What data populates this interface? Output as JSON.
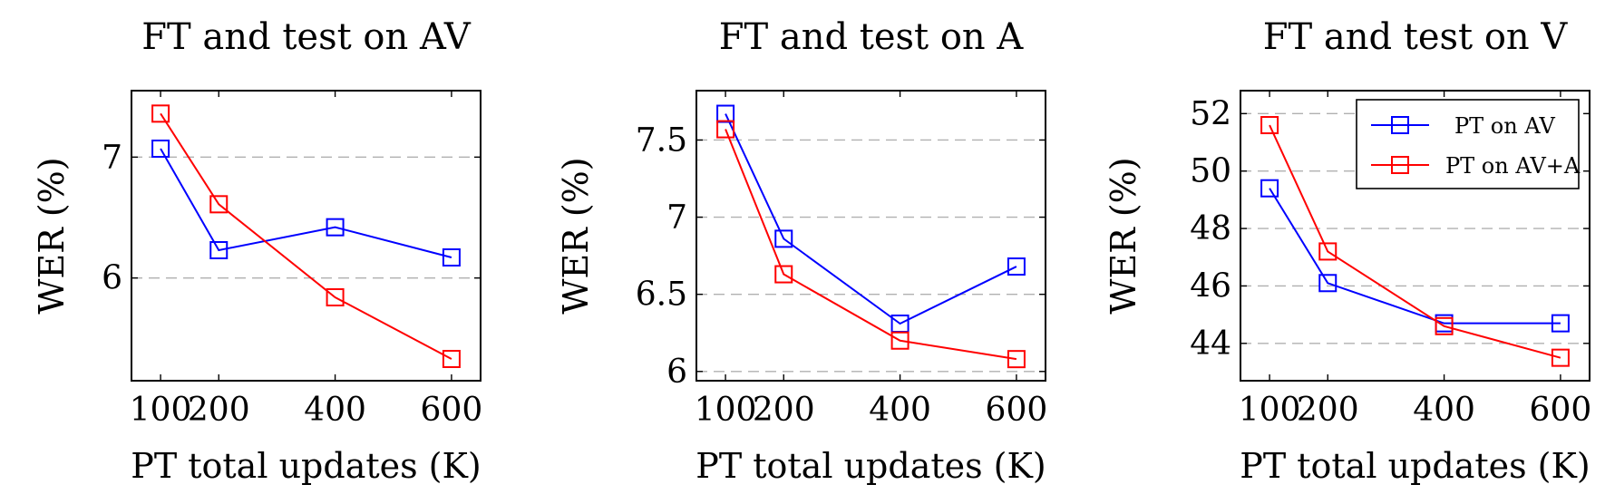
{
  "colors": {
    "pt_av": "#0000ff",
    "pt_av_a": "#ff0000",
    "grid": "#b0b0b0"
  },
  "chart_data": [
    {
      "type": "line",
      "title": "FT and test on AV",
      "xlabel": "PT total updates (K)",
      "ylabel": "WER (%)",
      "x": [
        100,
        200,
        400,
        600
      ],
      "xticks": [
        "100",
        "200",
        "400",
        "600"
      ],
      "yticks": [
        6,
        7
      ],
      "ylim": [
        5.15,
        7.55
      ],
      "xlim": [
        50,
        650
      ],
      "grid": "horizontal dashed",
      "series": [
        {
          "name": "PT on AV",
          "color": "#0000ff",
          "values": [
            7.07,
            6.23,
            6.42,
            6.17
          ]
        },
        {
          "name": "PT on AV+A",
          "color": "#ff0000",
          "values": [
            7.36,
            6.61,
            5.84,
            5.33
          ]
        }
      ]
    },
    {
      "type": "line",
      "title": "FT and test on A",
      "xlabel": "PT total updates (K)",
      "ylabel": "WER (%)",
      "x": [
        100,
        200,
        400,
        600
      ],
      "xticks": [
        "100",
        "200",
        "400",
        "600"
      ],
      "yticks": [
        6,
        6.5,
        7,
        7.5
      ],
      "ylim": [
        5.94,
        7.82
      ],
      "xlim": [
        50,
        650
      ],
      "grid": "horizontal dashed",
      "series": [
        {
          "name": "PT on AV",
          "color": "#0000ff",
          "values": [
            7.67,
            6.86,
            6.31,
            6.68
          ]
        },
        {
          "name": "PT on AV+A",
          "color": "#ff0000",
          "values": [
            7.57,
            6.63,
            6.2,
            6.08
          ]
        }
      ]
    },
    {
      "type": "line",
      "title": "FT and test on V",
      "xlabel": "PT total updates (K)",
      "ylabel": "WER (%)",
      "x": [
        100,
        200,
        400,
        600
      ],
      "xticks": [
        "100",
        "200",
        "400",
        "600"
      ],
      "yticks": [
        44,
        46,
        48,
        50,
        52
      ],
      "ylim": [
        42.7,
        52.8
      ],
      "xlim": [
        50,
        650
      ],
      "grid": "horizontal dashed",
      "legend": {
        "position": "top-right",
        "entries": [
          "PT on AV",
          "PT on AV+A"
        ]
      },
      "series": [
        {
          "name": "PT on AV",
          "color": "#0000ff",
          "values": [
            49.4,
            46.1,
            44.7,
            44.7
          ]
        },
        {
          "name": "PT on AV+A",
          "color": "#ff0000",
          "values": [
            51.6,
            47.2,
            44.6,
            43.5
          ]
        }
      ]
    }
  ]
}
